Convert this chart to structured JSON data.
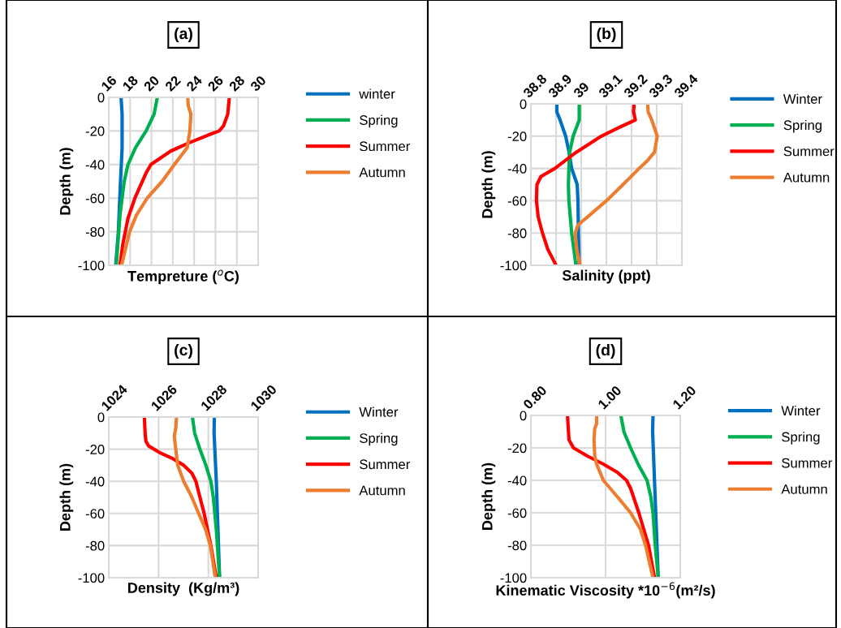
{
  "chart_data": [
    {
      "type": "line",
      "title": "(a)",
      "xlabel": "Tempreture ($^{o}$C)",
      "ylabel": "Depth (m)",
      "xlim": [
        16,
        30
      ],
      "xticks": [
        16,
        18,
        20,
        22,
        24,
        26,
        28,
        30
      ],
      "ylim": [
        -100,
        0
      ],
      "yticks": [
        0,
        -20,
        -40,
        -60,
        -80,
        -100
      ],
      "grid": true,
      "legend": "right",
      "series": [
        {
          "name": "winter",
          "color": "#0070c0",
          "x": [
            17.15,
            17.25,
            17.25,
            17.1,
            16.9,
            16.65
          ],
          "values": [
            0,
            -10,
            -30,
            -50,
            -80,
            -100
          ]
        },
        {
          "name": "Spring",
          "color": "#00b050",
          "x": [
            20.55,
            20.25,
            19.5,
            18.5,
            17.8,
            17.45,
            17.05,
            16.7
          ],
          "values": [
            0,
            -10,
            -20,
            -30,
            -40,
            -50,
            -70,
            -100
          ]
        },
        {
          "name": "Summer",
          "color": "#ff0000",
          "x": [
            27.3,
            27.15,
            26.75,
            26.35,
            25.3,
            23.55,
            21.8,
            19.95,
            19.5,
            18.45,
            17.8,
            17.3,
            17.05
          ],
          "values": [
            0,
            -10,
            -17,
            -20,
            -22.5,
            -27,
            -32,
            -40,
            -45,
            -60,
            -72,
            -88,
            -100
          ]
        },
        {
          "name": "Autumn",
          "color": "#ed7d31",
          "x": [
            23.4,
            23.45,
            23.7,
            23.6,
            23.35,
            22.15,
            21.0,
            19.6,
            18.6,
            17.95,
            17.2
          ],
          "values": [
            0,
            -5,
            -10,
            -20,
            -30,
            -40,
            -50,
            -60,
            -70,
            -80,
            -100
          ]
        }
      ]
    },
    {
      "type": "line",
      "title": "(b)",
      "xlabel": "Salinity (ppt)",
      "ylabel": "Depth (m)",
      "xlim": [
        38.8,
        39.4
      ],
      "xticks": [
        38.8,
        38.9,
        39,
        39.1,
        39.2,
        39.3,
        39.4
      ],
      "ylim": [
        -100,
        0
      ],
      "yticks": [
        0,
        -20,
        -40,
        -60,
        -80,
        -100
      ],
      "grid": true,
      "legend": "right",
      "series": [
        {
          "name": "Winter",
          "color": "#0070c0",
          "x": [
            38.903,
            38.903,
            38.916,
            38.938,
            38.952,
            38.962,
            38.973,
            38.984,
            38.987,
            38.989,
            38.992
          ],
          "values": [
            0,
            -5,
            -10,
            -20,
            -30,
            -40,
            -45,
            -50,
            -60,
            -80,
            -100
          ]
        },
        {
          "name": "Spring",
          "color": "#00b050",
          "x": [
            38.992,
            38.992,
            38.968,
            38.954,
            38.951,
            38.949,
            38.951,
            38.962,
            38.979
          ],
          "values": [
            0,
            -10,
            -20,
            -30,
            -40,
            -50,
            -60,
            -80,
            -100
          ]
        },
        {
          "name": "Summer",
          "color": "#ff0000",
          "x": [
            39.21,
            39.208,
            39.215,
            39.145,
            39.08,
            38.98,
            38.895,
            38.84,
            38.824,
            38.822,
            38.829,
            38.846,
            38.867,
            38.9
          ],
          "values": [
            0,
            -5,
            -10,
            -15,
            -20,
            -30,
            -40,
            -45,
            -50,
            -60,
            -70,
            -80,
            -90,
            -100
          ]
        },
        {
          "name": "Autumn",
          "color": "#ed7d31",
          "x": [
            39.264,
            39.266,
            39.28,
            39.302,
            39.291,
            39.264,
            39.23,
            39.166,
            39.1,
            39.025,
            38.987,
            38.976,
            38.982,
            38.996
          ],
          "values": [
            0,
            -5,
            -10,
            -20,
            -30,
            -35,
            -40,
            -50,
            -60,
            -70,
            -75,
            -80,
            -90,
            -100
          ]
        }
      ]
    },
    {
      "type": "line",
      "title": "(c)",
      "xlabel": "Density  (Kg/m³)",
      "ylabel": "Depth (m)",
      "xlim": [
        1024,
        1030
      ],
      "xticks": [
        1024,
        1026,
        1028,
        1030
      ],
      "ylim": [
        -100,
        0
      ],
      "yticks": [
        0,
        -20,
        -40,
        -60,
        -80,
        -100
      ],
      "grid": true,
      "legend": "right",
      "series": [
        {
          "name": "Winter",
          "color": "#0070c0",
          "x": [
            1028.24,
            1028.23,
            1028.32,
            1028.45
          ],
          "values": [
            0,
            -10,
            -40,
            -100
          ]
        },
        {
          "name": "Spring",
          "color": "#00b050",
          "x": [
            1027.36,
            1027.45,
            1027.66,
            1027.9,
            1028.1,
            1028.2,
            1028.32,
            1028.45
          ],
          "values": [
            0,
            -10,
            -20,
            -30,
            -40,
            -50,
            -70,
            -100
          ]
        },
        {
          "name": "Summer",
          "color": "#ff0000",
          "x": [
            1025.43,
            1025.46,
            1025.49,
            1025.6,
            1026.03,
            1026.58,
            1027.01,
            1027.34,
            1027.5,
            1027.58,
            1027.83,
            1028.1,
            1028.32
          ],
          "values": [
            0,
            -10,
            -15,
            -18,
            -22,
            -26,
            -30,
            -35,
            -40,
            -45,
            -60,
            -80,
            -100
          ]
        },
        {
          "name": "Autumn",
          "color": "#ed7d31",
          "x": [
            1026.72,
            1026.69,
            1026.63,
            1026.69,
            1026.77,
            1027.01,
            1027.34,
            1027.61,
            1027.89,
            1028.08,
            1028.28
          ],
          "values": [
            0,
            -7,
            -12,
            -20,
            -30,
            -40,
            -50,
            -60,
            -70,
            -80,
            -100
          ]
        }
      ]
    },
    {
      "type": "line",
      "title": "(d)",
      "xlabel": "Kinematic Viscosity *10$^{−6}$(m²/s)",
      "ylabel": "Depth (m)",
      "xlim": [
        0.8,
        1.2
      ],
      "xticks": [
        {
          "value": 0.8,
          "label": "0.80"
        },
        {
          "value": 1.0,
          "label": "1.00"
        },
        {
          "value": 1.2,
          "label": "1.20"
        }
      ],
      "ylim": [
        -100,
        0
      ],
      "yticks": [
        0,
        -20,
        -40,
        -60,
        -80,
        -100
      ],
      "grid": true,
      "legend": "right",
      "series": [
        {
          "name": "Winter",
          "color": "#0070c0",
          "x": [
            1.127,
            1.126,
            1.131,
            1.141
          ],
          "values": [
            0,
            -10,
            -40,
            -100
          ]
        },
        {
          "name": "Spring",
          "color": "#00b050",
          "x": [
            1.041,
            1.049,
            1.067,
            1.087,
            1.111,
            1.121,
            1.127,
            1.133,
            1.141
          ],
          "values": [
            0,
            -10,
            -20,
            -30,
            -40,
            -50,
            -60,
            -80,
            -100
          ]
        },
        {
          "name": "Summer",
          "color": "#ff0000",
          "x": [
            0.898,
            0.902,
            0.914,
            0.951,
            0.994,
            1.031,
            1.056,
            1.067,
            1.089,
            1.115,
            1.131
          ],
          "values": [
            0,
            -15,
            -20,
            -25,
            -30,
            -35,
            -40,
            -45,
            -60,
            -80,
            -100
          ]
        },
        {
          "name": "Autumn",
          "color": "#ed7d31",
          "x": [
            0.976,
            0.976,
            0.971,
            0.969,
            0.971,
            0.976,
            0.994,
            1.031,
            1.067,
            1.093,
            1.107,
            1.127
          ],
          "values": [
            0,
            -5,
            -8,
            -15,
            -25,
            -30,
            -40,
            -50,
            -60,
            -70,
            -80,
            -100
          ]
        }
      ]
    }
  ]
}
